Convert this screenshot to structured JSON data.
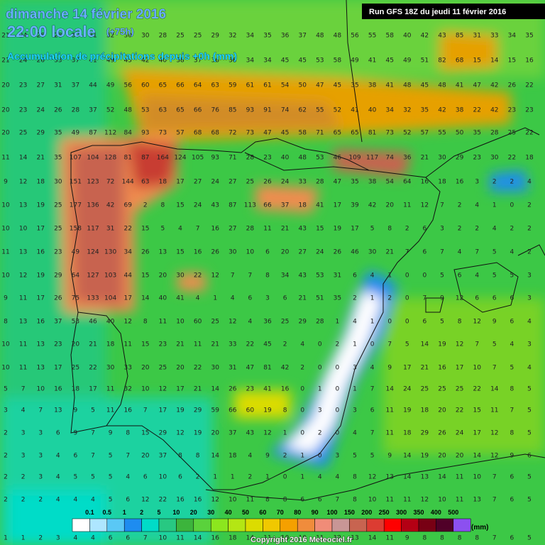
{
  "header": {
    "date": "dimanche 14 février 2016",
    "time": "22:00 locale",
    "lead": "(+75h)",
    "subtitle": "Accumulation de précipitations depuis +0h (mm)",
    "run": "Run GFS 18Z du jeudi 11 février 2016"
  },
  "legend": {
    "labels": [
      "0.1",
      "0.5",
      "1",
      "2",
      "5",
      "10",
      "20",
      "30",
      "40",
      "50",
      "60",
      "70",
      "80",
      "90",
      "100",
      "150",
      "200",
      "250",
      "300",
      "350",
      "400",
      "500"
    ],
    "colors": [
      "#ffffff",
      "#aee6ff",
      "#5ac8f5",
      "#1e8cf0",
      "#00dcc8",
      "#28c882",
      "#3cb43c",
      "#5ad23c",
      "#8ce61e",
      "#b4e614",
      "#dcdc00",
      "#f0c800",
      "#f5a000",
      "#f08c3c",
      "#f08c78",
      "#c89696",
      "#c86450",
      "#dc3c32",
      "#ff0000",
      "#b40014",
      "#780014",
      "#500028",
      "#8c50f0"
    ],
    "unit": "(mm)"
  },
  "grid_rows": [
    [
      21,
      24,
      26,
      28,
      30,
      31,
      32,
      30,
      30,
      28,
      25,
      25,
      29,
      32,
      34,
      35,
      36,
      37,
      48,
      48,
      56,
      55,
      58,
      40,
      42,
      43,
      85,
      31,
      33,
      34,
      35
    ],
    [
      21,
      24,
      26,
      33,
      37,
      41,
      49,
      45,
      42,
      40,
      38,
      37,
      36,
      36,
      34,
      34,
      45,
      45,
      53,
      58,
      49,
      41,
      45,
      49,
      51,
      82,
      68,
      15,
      14,
      15,
      16
    ],
    [
      20,
      23,
      27,
      31,
      37,
      44,
      49,
      56,
      60,
      65,
      66,
      64,
      63,
      59,
      61,
      61,
      54,
      50,
      47,
      45,
      35,
      38,
      41,
      48,
      45,
      48,
      41,
      47,
      42,
      26,
      22
    ],
    [
      20,
      23,
      24,
      26,
      28,
      37,
      52,
      48,
      53,
      63,
      65,
      66,
      76,
      85,
      93,
      91,
      74,
      62,
      55,
      52,
      41,
      40,
      34,
      32,
      35,
      42,
      38,
      22,
      42,
      23,
      23
    ],
    [
      20,
      25,
      29,
      35,
      49,
      87,
      112,
      84,
      93,
      73,
      57,
      68,
      68,
      72,
      73,
      47,
      45,
      58,
      71,
      65,
      65,
      81,
      73,
      52,
      57,
      55,
      50,
      35,
      28,
      25,
      22
    ],
    [
      11,
      14,
      21,
      35,
      107,
      104,
      128,
      81,
      87,
      164,
      124,
      105,
      93,
      71,
      28,
      23,
      40,
      48,
      53,
      46,
      109,
      117,
      74,
      36,
      21,
      30,
      29,
      23,
      30,
      22,
      18
    ],
    [
      9,
      12,
      18,
      30,
      151,
      123,
      72,
      144,
      63,
      18,
      17,
      27,
      24,
      27,
      25,
      26,
      24,
      33,
      28,
      47,
      35,
      38,
      54,
      64,
      16,
      18,
      16,
      3,
      2,
      2,
      4
    ],
    [
      10,
      13,
      19,
      25,
      177,
      136,
      42,
      69,
      2,
      8,
      15,
      24,
      43,
      87,
      113,
      66,
      37,
      18,
      41,
      17,
      39,
      42,
      20,
      11,
      12,
      7,
      2,
      4,
      1,
      0,
      2
    ],
    [
      10,
      10,
      17,
      25,
      158,
      117,
      31,
      22,
      15,
      5,
      4,
      7,
      16,
      27,
      28,
      11,
      21,
      43,
      15,
      19,
      17,
      5,
      8,
      2,
      6,
      3,
      2,
      2,
      4,
      2,
      2
    ],
    [
      11,
      13,
      16,
      23,
      49,
      124,
      130,
      34,
      26,
      13,
      15,
      16,
      26,
      30,
      10,
      6,
      20,
      27,
      24,
      26,
      46,
      30,
      21,
      7,
      6,
      7,
      4,
      7,
      5,
      4,
      2
    ],
    [
      10,
      12,
      19,
      29,
      64,
      127,
      103,
      44,
      15,
      20,
      30,
      22,
      12,
      7,
      7,
      8,
      34,
      43,
      53,
      31,
      6,
      4,
      1,
      0,
      0,
      5,
      6,
      4,
      5,
      5,
      3
    ],
    [
      9,
      11,
      17,
      26,
      75,
      133,
      104,
      17,
      14,
      40,
      41,
      4,
      1,
      4,
      6,
      3,
      6,
      21,
      51,
      35,
      2,
      1,
      2,
      0,
      7,
      9,
      12,
      6,
      6,
      6,
      3
    ],
    [
      8,
      13,
      16,
      37,
      53,
      46,
      40,
      12,
      8,
      11,
      10,
      60,
      25,
      12,
      4,
      36,
      25,
      29,
      28,
      1,
      4,
      1,
      0,
      0,
      6,
      5,
      8,
      12,
      9,
      6,
      4
    ],
    [
      10,
      11,
      13,
      23,
      20,
      21,
      18,
      11,
      15,
      23,
      21,
      11,
      21,
      33,
      22,
      45,
      2,
      4,
      0,
      2,
      1,
      0,
      7,
      5,
      14,
      19,
      12,
      7,
      5,
      4,
      3
    ],
    [
      10,
      11,
      13,
      17,
      25,
      22,
      30,
      33,
      20,
      25,
      20,
      22,
      30,
      31,
      47,
      81,
      42,
      2,
      0,
      0,
      3,
      4,
      9,
      17,
      21,
      16,
      17,
      10,
      7,
      5,
      4
    ],
    [
      5,
      7,
      10,
      16,
      18,
      17,
      11,
      32,
      10,
      12,
      17,
      21,
      14,
      26,
      23,
      41,
      16,
      0,
      1,
      0,
      1,
      7,
      14,
      24,
      25,
      25,
      25,
      22,
      14,
      8,
      5
    ],
    [
      3,
      4,
      7,
      13,
      9,
      5,
      11,
      16,
      7,
      17,
      19,
      29,
      59,
      66,
      60,
      19,
      8,
      0,
      3,
      0,
      3,
      6,
      11,
      19,
      18,
      20,
      22,
      15,
      11,
      7,
      5
    ],
    [
      2,
      3,
      3,
      6,
      9,
      7,
      9,
      8,
      15,
      29,
      12,
      19,
      20,
      37,
      43,
      12,
      1,
      0,
      2,
      0,
      4,
      7,
      11,
      18,
      29,
      26,
      24,
      17,
      12,
      8,
      5
    ],
    [
      2,
      3,
      3,
      4,
      6,
      7,
      5,
      7,
      20,
      37,
      8,
      8,
      14,
      18,
      4,
      9,
      2,
      1,
      0,
      3,
      5,
      5,
      9,
      14,
      19,
      20,
      20,
      14,
      12,
      9,
      6
    ],
    [
      2,
      2,
      3,
      4,
      5,
      5,
      5,
      4,
      6,
      10,
      6,
      2,
      1,
      1,
      2,
      1,
      0,
      1,
      4,
      4,
      8,
      12,
      13,
      14,
      13,
      14,
      11,
      10,
      7,
      6,
      5
    ],
    [
      2,
      2,
      2,
      4,
      4,
      4,
      5,
      6,
      12,
      22,
      16,
      16,
      12,
      10,
      11,
      8,
      8,
      6,
      6,
      7,
      8,
      10,
      11,
      11,
      12,
      10,
      11,
      13,
      7,
      6,
      5
    ],
    [
      1,
      1,
      2,
      3,
      4,
      4,
      6,
      6,
      7,
      10,
      11,
      14,
      16,
      18,
      14,
      11,
      10,
      10,
      11,
      12,
      13,
      14,
      11,
      9,
      8,
      8,
      8,
      8,
      7,
      6,
      5
    ]
  ],
  "copyright": "Copyright 2016 Meteociel.fr"
}
